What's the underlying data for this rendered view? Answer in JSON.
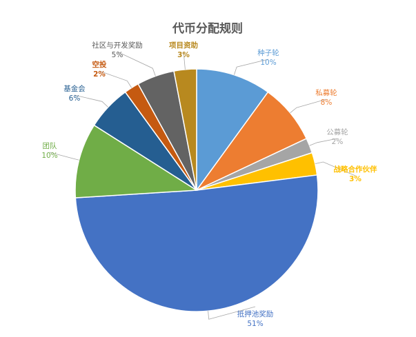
{
  "chart_data": {
    "type": "pie",
    "title": "代币分配规则",
    "slices": [
      {
        "name": "种子轮",
        "value": 10,
        "label": "10%",
        "color": "#5b9bd5",
        "bold": false
      },
      {
        "name": "私募轮",
        "value": 8,
        "label": "8%",
        "color": "#ed7d31",
        "bold": false
      },
      {
        "name": "公募轮",
        "value": 2,
        "label": "2%",
        "color": "#a5a5a5",
        "bold": false
      },
      {
        "name": "战略合作伙伴",
        "value": 3,
        "label": "3%",
        "color": "#ffc000",
        "bold": true
      },
      {
        "name": "抵押池奖励",
        "value": 51,
        "label": "51%",
        "color": "#4472c4",
        "bold": false
      },
      {
        "name": "团队",
        "value": 10,
        "label": "10%",
        "color": "#70ad47",
        "bold": false
      },
      {
        "name": "基金会",
        "value": 6,
        "label": "6%",
        "color": "#255e91",
        "bold": false
      },
      {
        "name": "空投",
        "value": 2,
        "label": "2%",
        "color": "#c55a11",
        "bold": true
      },
      {
        "name": "社区与开发奖励",
        "value": 5,
        "label": "5%",
        "color": "#636363",
        "bold": false
      },
      {
        "name": "项目资助",
        "value": 3,
        "label": "3%",
        "color": "#b8891f",
        "bold": true
      }
    ],
    "legend": "none",
    "data_labels": "outside-with-leader-lines"
  }
}
